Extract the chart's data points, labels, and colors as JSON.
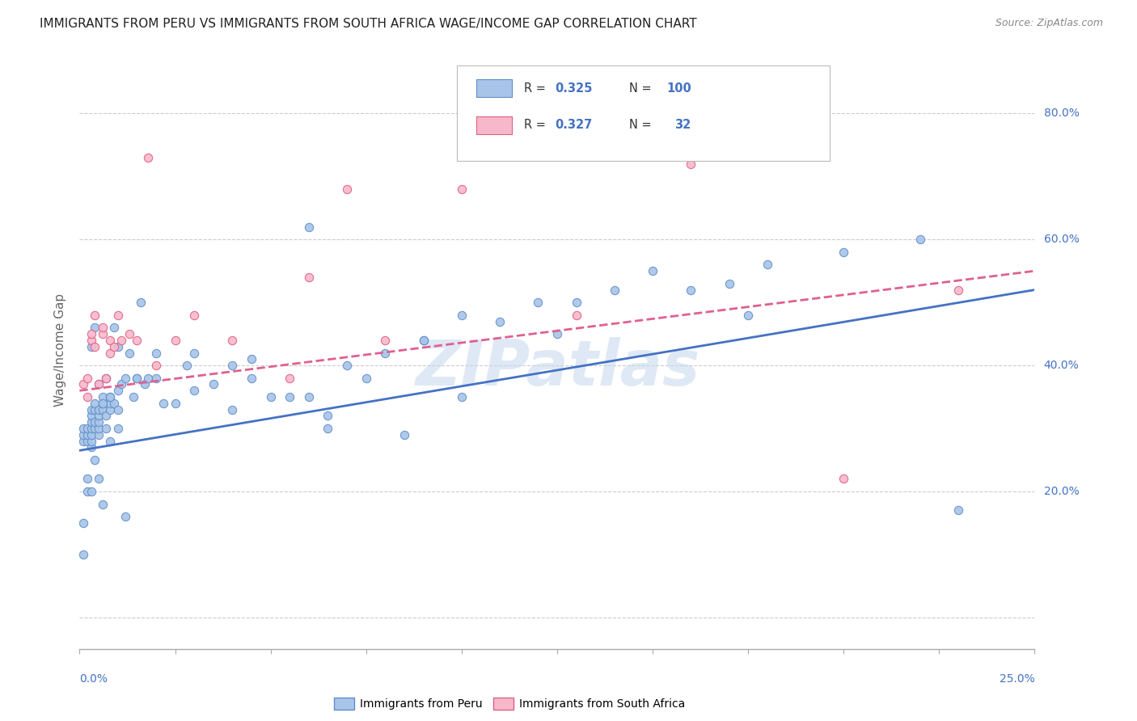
{
  "title": "IMMIGRANTS FROM PERU VS IMMIGRANTS FROM SOUTH AFRICA WAGE/INCOME GAP CORRELATION CHART",
  "source": "Source: ZipAtlas.com",
  "ylabel": "Wage/Income Gap",
  "watermark": "ZIPatlas",
  "legend_label1": "Immigrants from Peru",
  "legend_label2": "Immigrants from South Africa",
  "color_peru_fill": "#a8c4e8",
  "color_peru_edge": "#6090c8",
  "color_sa_fill": "#f8b8cc",
  "color_sa_edge": "#e06080",
  "color_blue": "#4472c4",
  "color_pink": "#e06090",
  "color_r_text": "#4472c4",
  "background": "#ffffff",
  "grid_color": "#cccccc",
  "peru_x": [
    0.1,
    0.1,
    0.1,
    0.2,
    0.2,
    0.2,
    0.3,
    0.3,
    0.3,
    0.3,
    0.3,
    0.3,
    0.3,
    0.4,
    0.4,
    0.4,
    0.4,
    0.5,
    0.5,
    0.5,
    0.5,
    0.5,
    0.6,
    0.6,
    0.6,
    0.7,
    0.7,
    0.8,
    0.8,
    0.8,
    0.9,
    0.9,
    1.0,
    1.0,
    1.1,
    1.2,
    1.3,
    1.4,
    1.5,
    1.6,
    1.7,
    1.8,
    2.0,
    2.2,
    2.5,
    2.8,
    3.0,
    3.5,
    4.0,
    4.5,
    5.0,
    5.5,
    6.0,
    6.5,
    7.0,
    7.5,
    8.0,
    9.0,
    10.0,
    11.0,
    12.0,
    13.0,
    14.0,
    15.0,
    16.0,
    17.0,
    18.0,
    20.0,
    22.0,
    23.0,
    0.1,
    0.1,
    0.2,
    0.2,
    0.3,
    0.4,
    0.5,
    0.6,
    0.8,
    1.0,
    1.2,
    4.0,
    6.0,
    8.5,
    10.0,
    12.5,
    17.5,
    0.3,
    0.4,
    0.5,
    0.6,
    0.7,
    0.8,
    1.0,
    1.5,
    2.0,
    3.0,
    4.5,
    6.5,
    9.0
  ],
  "peru_y": [
    28,
    29,
    30,
    28,
    29,
    30,
    27,
    28,
    29,
    30,
    31,
    32,
    33,
    30,
    31,
    33,
    34,
    29,
    30,
    31,
    32,
    33,
    33,
    34,
    35,
    30,
    32,
    33,
    34,
    35,
    34,
    46,
    33,
    36,
    37,
    38,
    42,
    35,
    38,
    50,
    37,
    38,
    38,
    34,
    34,
    40,
    42,
    37,
    40,
    41,
    35,
    35,
    62,
    30,
    40,
    38,
    42,
    44,
    48,
    47,
    50,
    50,
    52,
    55,
    52,
    53,
    56,
    58,
    60,
    17,
    10,
    15,
    22,
    20,
    20,
    25,
    22,
    18,
    28,
    30,
    16,
    33,
    35,
    29,
    35,
    45,
    48,
    43,
    46,
    37,
    34,
    38,
    35,
    43,
    38,
    42,
    36,
    38,
    32,
    44
  ],
  "sa_x": [
    0.1,
    0.2,
    0.2,
    0.3,
    0.3,
    0.4,
    0.4,
    0.5,
    0.6,
    0.6,
    0.7,
    0.8,
    0.8,
    0.9,
    1.0,
    1.1,
    1.3,
    1.5,
    1.8,
    2.0,
    2.5,
    3.0,
    4.0,
    5.5,
    6.0,
    7.0,
    8.0,
    10.0,
    13.0,
    16.0,
    20.0,
    23.0
  ],
  "sa_y": [
    37,
    35,
    38,
    44,
    45,
    43,
    48,
    37,
    45,
    46,
    38,
    42,
    44,
    43,
    48,
    44,
    45,
    44,
    73,
    40,
    44,
    48,
    44,
    38,
    54,
    68,
    44,
    68,
    48,
    72,
    22,
    52
  ],
  "peru_trend_x": [
    0.0,
    25.0
  ],
  "peru_trend_y": [
    26.5,
    52.0
  ],
  "sa_trend_x": [
    0.0,
    25.0
  ],
  "sa_trend_y": [
    36.0,
    55.0
  ],
  "xlim": [
    0.0,
    25.0
  ],
  "ylim": [
    -5.0,
    90.0
  ],
  "yticks": [
    0,
    20,
    40,
    60,
    80
  ],
  "xticks": [
    0,
    2.5,
    5.0,
    7.5,
    10.0,
    12.5,
    15.0,
    17.5,
    20.0,
    22.5,
    25.0
  ]
}
